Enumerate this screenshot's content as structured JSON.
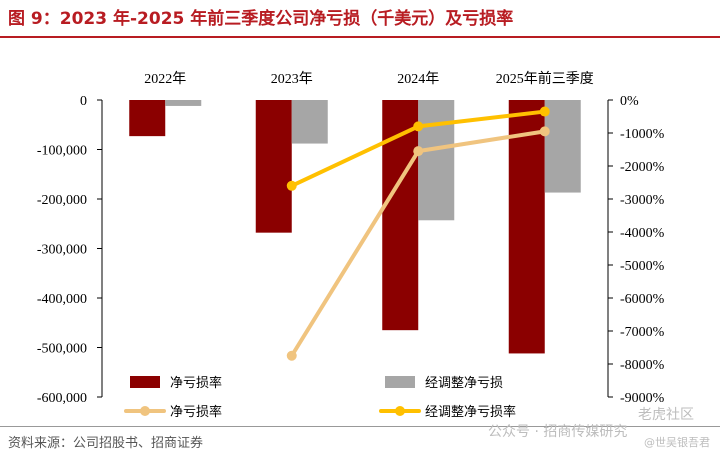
{
  "header": {
    "title": "图 9：2023 年-2025 年前三季度公司净亏损（千美元）及亏损率"
  },
  "footer": {
    "source": "资料来源：公司招股书、招商证券",
    "watermark_1": "公众号 · 招商传媒研究",
    "watermark_2": "老虎社区",
    "watermark_3": "@世吴银吾君"
  },
  "chart_data": {
    "type": "bar",
    "title": "",
    "categories": [
      "2022年",
      "2023年",
      "2024年",
      "2025年前三季度"
    ],
    "series": [
      {
        "name": "净亏损率",
        "kind": "bar",
        "axis": "left",
        "color": "#8b0000",
        "values": [
          -73000,
          -268000,
          -465000,
          -512000
        ]
      },
      {
        "name": "经调整净亏损",
        "kind": "bar",
        "axis": "left",
        "color": "#a6a6a6",
        "values": [
          -12000,
          -88000,
          -243000,
          -187000
        ]
      },
      {
        "name": "净亏损率",
        "kind": "line",
        "axis": "right",
        "color": "#f0c47f",
        "values": [
          null,
          -7750,
          -1550,
          -950
        ]
      },
      {
        "name": "经调整净亏损率",
        "kind": "line",
        "axis": "right",
        "color": "#ffc000",
        "values": [
          null,
          -2600,
          -800,
          -350
        ]
      }
    ],
    "left_axis": {
      "ylim": [
        -600000,
        0
      ],
      "ticks": [
        0,
        -100000,
        -200000,
        -300000,
        -400000,
        -500000,
        -600000
      ],
      "tick_labels": [
        "0",
        "-100,000",
        "-200,000",
        "-300,000",
        "-400,000",
        "-500,000",
        "-600,000"
      ]
    },
    "right_axis": {
      "ylim": [
        -9000,
        0
      ],
      "ticks": [
        0,
        -1000,
        -2000,
        -3000,
        -4000,
        -5000,
        -6000,
        -7000,
        -8000,
        -9000
      ],
      "tick_labels": [
        "0%",
        "-1000%",
        "-2000%",
        "-3000%",
        "-4000%",
        "-5000%",
        "-6000%",
        "-7000%",
        "-8000%",
        "-9000%"
      ]
    },
    "grid": false,
    "legend": {
      "placement": "bottom",
      "entries": [
        "净亏损率",
        "经调整净亏损",
        "净亏损率",
        "经调整净亏损率"
      ]
    }
  }
}
